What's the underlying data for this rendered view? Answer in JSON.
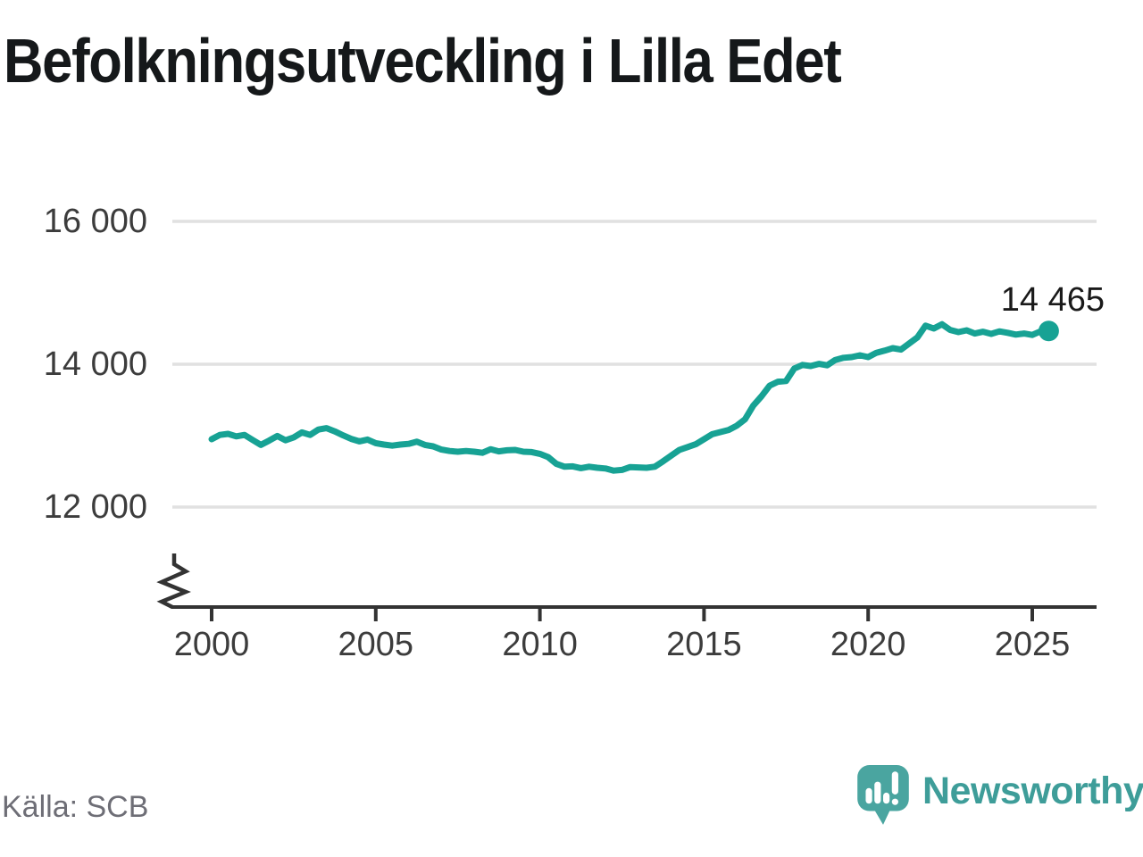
{
  "title": "Befolkningsutveckling i Lilla Edet",
  "source": {
    "text": "Källa: SCB"
  },
  "branding": {
    "name": "Newsworthy",
    "icon": "newsworthy-speech-bubble-bar-chart-icon"
  },
  "colors": {
    "line": "#17a294",
    "dot": "#17a294",
    "grid": "#e1e1e1",
    "axis": "#333333",
    "axis_label": "#3c3c3c",
    "end_label": "#1a1a1a",
    "title": "#15181a",
    "source": "#6e6e76",
    "brand_text": "#3e9d99",
    "brand_icon": "#4aa5a0"
  },
  "chart_data": {
    "type": "line",
    "title": "Befolkningsutveckling i Lilla Edet",
    "xlabel": "",
    "ylabel": "",
    "legend": "none",
    "grid": "horizontal",
    "y_axis_break": true,
    "xlim": [
      1998.8,
      2027
    ],
    "ylim": [
      12000,
      16000
    ],
    "x_ticks": [
      {
        "value": 2000,
        "label": "2000"
      },
      {
        "value": 2005,
        "label": "2005"
      },
      {
        "value": 2010,
        "label": "2010"
      },
      {
        "value": 2015,
        "label": "2015"
      },
      {
        "value": 2020,
        "label": "2020"
      },
      {
        "value": 2025,
        "label": "2025"
      }
    ],
    "y_ticks": [
      {
        "value": 16000,
        "label": "16 000"
      },
      {
        "value": 14000,
        "label": "14 000"
      },
      {
        "value": 12000,
        "label": "12 000"
      }
    ],
    "points": [
      [
        2000.0,
        12950
      ],
      [
        2000.25,
        13010
      ],
      [
        2000.5,
        13025
      ],
      [
        2000.75,
        12990
      ],
      [
        2001.0,
        13010
      ],
      [
        2001.25,
        12940
      ],
      [
        2001.5,
        12870
      ],
      [
        2001.75,
        12930
      ],
      [
        2002.0,
        12995
      ],
      [
        2002.25,
        12935
      ],
      [
        2002.5,
        12975
      ],
      [
        2002.75,
        13045
      ],
      [
        2003.0,
        13010
      ],
      [
        2003.25,
        13085
      ],
      [
        2003.5,
        13105
      ],
      [
        2003.75,
        13060
      ],
      [
        2004.0,
        13005
      ],
      [
        2004.25,
        12955
      ],
      [
        2004.5,
        12920
      ],
      [
        2004.75,
        12945
      ],
      [
        2005.0,
        12895
      ],
      [
        2005.25,
        12875
      ],
      [
        2005.5,
        12860
      ],
      [
        2005.75,
        12875
      ],
      [
        2006.0,
        12885
      ],
      [
        2006.25,
        12915
      ],
      [
        2006.5,
        12870
      ],
      [
        2006.75,
        12850
      ],
      [
        2007.0,
        12805
      ],
      [
        2007.25,
        12785
      ],
      [
        2007.5,
        12775
      ],
      [
        2007.75,
        12785
      ],
      [
        2008.0,
        12775
      ],
      [
        2008.25,
        12760
      ],
      [
        2008.5,
        12810
      ],
      [
        2008.75,
        12780
      ],
      [
        2009.0,
        12795
      ],
      [
        2009.25,
        12800
      ],
      [
        2009.5,
        12775
      ],
      [
        2009.75,
        12770
      ],
      [
        2010.0,
        12745
      ],
      [
        2010.25,
        12700
      ],
      [
        2010.5,
        12605
      ],
      [
        2010.75,
        12565
      ],
      [
        2011.0,
        12570
      ],
      [
        2011.25,
        12545
      ],
      [
        2011.5,
        12565
      ],
      [
        2011.75,
        12550
      ],
      [
        2012.0,
        12540
      ],
      [
        2012.25,
        12510
      ],
      [
        2012.5,
        12520
      ],
      [
        2012.75,
        12560
      ],
      [
        2013.0,
        12555
      ],
      [
        2013.25,
        12550
      ],
      [
        2013.5,
        12565
      ],
      [
        2013.75,
        12640
      ],
      [
        2014.0,
        12720
      ],
      [
        2014.25,
        12800
      ],
      [
        2014.5,
        12840
      ],
      [
        2014.75,
        12880
      ],
      [
        2015.0,
        12950
      ],
      [
        2015.25,
        13020
      ],
      [
        2015.5,
        13050
      ],
      [
        2015.75,
        13080
      ],
      [
        2016.0,
        13140
      ],
      [
        2016.25,
        13230
      ],
      [
        2016.5,
        13420
      ],
      [
        2016.75,
        13550
      ],
      [
        2017.0,
        13700
      ],
      [
        2017.25,
        13755
      ],
      [
        2017.5,
        13765
      ],
      [
        2017.75,
        13940
      ],
      [
        2018.0,
        13990
      ],
      [
        2018.25,
        13975
      ],
      [
        2018.5,
        14005
      ],
      [
        2018.75,
        13985
      ],
      [
        2019.0,
        14060
      ],
      [
        2019.25,
        14090
      ],
      [
        2019.5,
        14100
      ],
      [
        2019.75,
        14125
      ],
      [
        2020.0,
        14100
      ],
      [
        2020.25,
        14160
      ],
      [
        2020.5,
        14190
      ],
      [
        2020.75,
        14225
      ],
      [
        2021.0,
        14205
      ],
      [
        2021.25,
        14290
      ],
      [
        2021.5,
        14375
      ],
      [
        2021.75,
        14540
      ],
      [
        2022.0,
        14500
      ],
      [
        2022.25,
        14560
      ],
      [
        2022.5,
        14480
      ],
      [
        2022.75,
        14450
      ],
      [
        2023.0,
        14475
      ],
      [
        2023.25,
        14430
      ],
      [
        2023.5,
        14455
      ],
      [
        2023.75,
        14425
      ],
      [
        2024.0,
        14460
      ],
      [
        2024.25,
        14440
      ],
      [
        2024.5,
        14415
      ],
      [
        2024.75,
        14430
      ],
      [
        2025.0,
        14410
      ],
      [
        2025.25,
        14460
      ],
      [
        2025.5,
        14465
      ]
    ],
    "end_point": {
      "x": 2025.5,
      "value": 14465,
      "label": "14 465"
    }
  }
}
